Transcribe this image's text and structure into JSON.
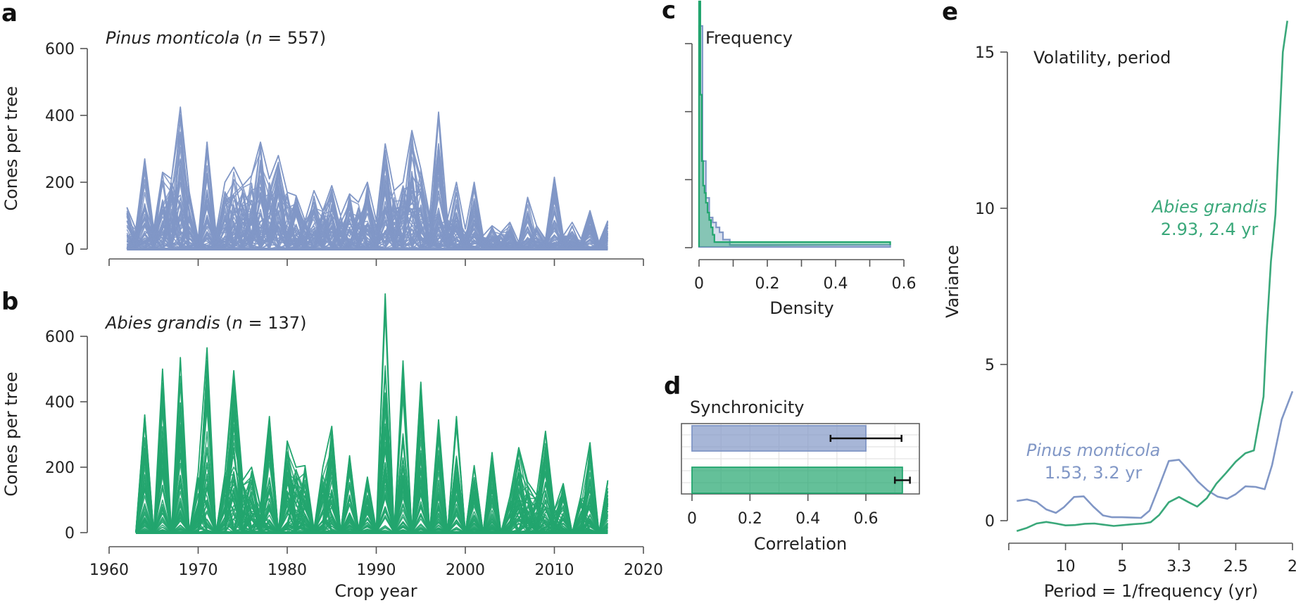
{
  "chart_data": [
    {
      "panel": "a",
      "type": "line",
      "title_species": "Pinus monticola",
      "title_n": "557",
      "ylabel": "Cones per tree",
      "xlabel": "",
      "xlim": [
        1960,
        2020
      ],
      "ylim": [
        0,
        600
      ],
      "yticks": [
        "0",
        "200",
        "400",
        "600"
      ],
      "xticks": [
        "1960",
        "1970",
        "1980",
        "1990",
        "2000",
        "2010",
        "2020"
      ],
      "show_xtick_labels": false,
      "color": "#8197c6",
      "n_trees": 557,
      "series_description": "per-year maximum cones per tree across trees",
      "years": [
        1962,
        1963,
        1964,
        1965,
        1966,
        1967,
        1968,
        1969,
        1970,
        1971,
        1972,
        1973,
        1974,
        1975,
        1976,
        1977,
        1978,
        1979,
        1980,
        1981,
        1982,
        1983,
        1984,
        1985,
        1986,
        1987,
        1988,
        1989,
        1990,
        1991,
        1992,
        1993,
        1994,
        1995,
        1996,
        1997,
        1998,
        1999,
        2000,
        2001,
        2002,
        2003,
        2004,
        2005,
        2006,
        2007,
        2008,
        2009,
        2010,
        2011,
        2012,
        2013,
        2014,
        2015,
        2016
      ],
      "max_values": [
        125,
        60,
        270,
        60,
        230,
        210,
        425,
        170,
        30,
        320,
        50,
        200,
        245,
        190,
        220,
        320,
        210,
        280,
        170,
        160,
        85,
        175,
        115,
        190,
        100,
        165,
        140,
        200,
        85,
        315,
        175,
        200,
        355,
        240,
        100,
        410,
        90,
        200,
        60,
        200,
        40,
        70,
        50,
        80,
        20,
        155,
        70,
        30,
        215,
        40,
        80,
        30,
        115,
        20,
        85
      ]
    },
    {
      "panel": "b",
      "type": "line",
      "title_species": "Abies grandis",
      "title_n": "137",
      "ylabel": "Cones per tree",
      "xlabel": "Crop year",
      "xlim": [
        1960,
        2020
      ],
      "ylim": [
        0,
        600
      ],
      "yticks": [
        "0",
        "200",
        "400",
        "600"
      ],
      "xticks": [
        "1960",
        "1970",
        "1980",
        "1990",
        "2000",
        "2010",
        "2020"
      ],
      "show_xtick_labels": true,
      "color": "#22a56e",
      "n_trees": 137,
      "series_description": "per-year maximum cones per tree across trees",
      "years": [
        1963,
        1964,
        1965,
        1966,
        1967,
        1968,
        1969,
        1970,
        1971,
        1972,
        1973,
        1974,
        1975,
        1976,
        1977,
        1978,
        1979,
        1980,
        1981,
        1982,
        1983,
        1984,
        1985,
        1986,
        1987,
        1988,
        1989,
        1990,
        1991,
        1992,
        1993,
        1994,
        1995,
        1996,
        1997,
        1998,
        1999,
        2000,
        2001,
        2002,
        2003,
        2004,
        2005,
        2006,
        2007,
        2008,
        2009,
        2010,
        2011,
        2012,
        2013,
        2014,
        2015,
        2016
      ],
      "max_values": [
        0,
        360,
        0,
        500,
        0,
        535,
        0,
        185,
        565,
        0,
        180,
        495,
        160,
        200,
        80,
        355,
        0,
        280,
        200,
        205,
        10,
        200,
        325,
        0,
        235,
        10,
        170,
        10,
        730,
        0,
        525,
        0,
        460,
        0,
        345,
        0,
        355,
        0,
        205,
        0,
        245,
        0,
        110,
        260,
        155,
        115,
        310,
        70,
        150,
        0,
        115,
        275,
        0,
        160
      ]
    },
    {
      "panel": "c",
      "type": "histogram",
      "title": "Frequency",
      "xlabel": "Density",
      "ylabel": "",
      "xlim": [
        0,
        0.6
      ],
      "xticks": [
        "0",
        "0.2",
        "0.4",
        "0.6"
      ],
      "yticks_count": 4,
      "series": [
        {
          "name": "Pinus monticola",
          "color": "#8197c6",
          "bin_edges": [
            0,
            0.01,
            0.02,
            0.03,
            0.04,
            0.05,
            0.06,
            0.07,
            0.08,
            0.09,
            0.56
          ],
          "heights": [
            0.9,
            0.35,
            0.2,
            0.12,
            0.1,
            0.08,
            0.06,
            0.03,
            0.03,
            0.008
          ]
        },
        {
          "name": "Abies grandis",
          "color": "#22a56e",
          "bin_edges": [
            0,
            0.004,
            0.008,
            0.012,
            0.016,
            0.02,
            0.025,
            0.03,
            0.035,
            0.04,
            0.045,
            0.56
          ],
          "heights": [
            1.0,
            0.62,
            0.35,
            0.25,
            0.22,
            0.18,
            0.14,
            0.11,
            0.08,
            0.05,
            0.02,
            0.008
          ]
        }
      ]
    },
    {
      "panel": "d",
      "type": "bar",
      "orientation": "horizontal",
      "title": "Synchronicity",
      "xlabel": "Correlation",
      "xlim": [
        0,
        0.75
      ],
      "xticks": [
        "0",
        "0.2",
        "0.4",
        "0.6"
      ],
      "grid": true,
      "categories": [
        "Pinus monticola",
        "Abies grandis"
      ],
      "values": [
        0.6,
        0.726
      ],
      "error_low": [
        0.478,
        0.7
      ],
      "error_high": [
        0.723,
        0.752
      ],
      "colors": [
        "#8197c6",
        "#22a56e"
      ]
    },
    {
      "panel": "e",
      "type": "line",
      "title": "Volatility, period",
      "xlabel": "Period = 1/frequency (yr)",
      "ylabel": "Variance",
      "x_description": "frequency (1/yr); tick labels show period",
      "xlim": [
        0,
        0.5
      ],
      "ylim": [
        -0.5,
        16
      ],
      "xticks": [
        {
          "freq": 0.1,
          "label": "10"
        },
        {
          "freq": 0.2,
          "label": "5"
        },
        {
          "freq": 0.3,
          "label": "3.3"
        },
        {
          "freq": 0.4,
          "label": "2.5"
        },
        {
          "freq": 0.5,
          "label": "2"
        }
      ],
      "yticks": [
        "0",
        "5",
        "10",
        "15"
      ],
      "series": [
        {
          "name": "Pinus monticola",
          "annotation_line1": "Pinus monticola",
          "annotation_line2": "1.53, 3.2 yr",
          "color": "#8197c6",
          "freq": [
            0.014,
            0.032,
            0.049,
            0.066,
            0.083,
            0.097,
            0.115,
            0.132,
            0.149,
            0.166,
            0.182,
            0.199,
            0.217,
            0.233,
            0.248,
            0.265,
            0.282,
            0.3,
            0.317,
            0.333,
            0.351,
            0.368,
            0.385,
            0.4,
            0.417,
            0.435,
            0.451,
            0.464,
            0.481,
            0.5
          ],
          "variance": [
            0.63,
            0.68,
            0.6,
            0.36,
            0.25,
            0.43,
            0.76,
            0.78,
            0.45,
            0.17,
            0.11,
            0.11,
            0.1,
            0.09,
            0.32,
            1.1,
            1.91,
            1.95,
            1.61,
            1.26,
            0.96,
            0.77,
            0.7,
            0.85,
            1.1,
            1.08,
            1.01,
            1.78,
            3.24,
            4.14
          ]
        },
        {
          "name": "Abies grandis",
          "annotation_line1": "Abies grandis",
          "annotation_line2": "2.93, 2.4 yr",
          "color": "#3aa87a",
          "freq": [
            0.014,
            0.032,
            0.049,
            0.066,
            0.083,
            0.1,
            0.117,
            0.134,
            0.151,
            0.168,
            0.185,
            0.203,
            0.22,
            0.237,
            0.25,
            0.265,
            0.282,
            0.3,
            0.317,
            0.332,
            0.349,
            0.366,
            0.383,
            0.4,
            0.417,
            0.432,
            0.449,
            0.455,
            0.462,
            0.47,
            0.483,
            0.491
          ],
          "variance": [
            -0.33,
            -0.23,
            -0.09,
            -0.04,
            -0.09,
            -0.15,
            -0.14,
            -0.1,
            -0.09,
            -0.13,
            -0.17,
            -0.14,
            -0.11,
            -0.09,
            -0.05,
            0.18,
            0.59,
            0.76,
            0.59,
            0.45,
            0.72,
            1.19,
            1.53,
            1.89,
            2.16,
            2.25,
            3.97,
            6.2,
            8.3,
            9.8,
            15.0,
            16.0
          ]
        }
      ]
    }
  ],
  "panel_letters": {
    "a": "a",
    "b": "b",
    "c": "c",
    "d": "d",
    "e": "e"
  },
  "text": {
    "n_label": "n",
    "eq": " = "
  }
}
